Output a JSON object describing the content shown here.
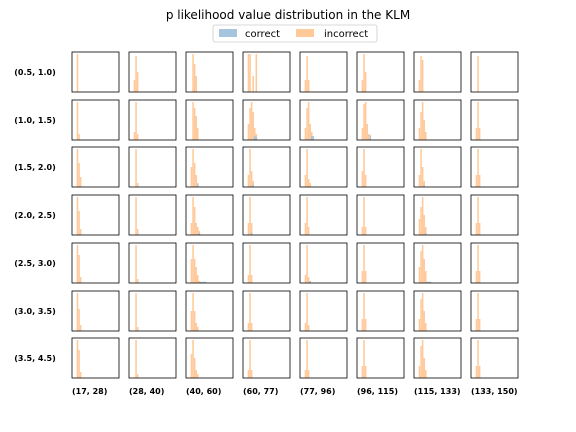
{
  "chart_data": {
    "type": "histogram-grid",
    "title": "p likelihood value distribution in the KLM",
    "legend": {
      "placement": "top-center",
      "entries": [
        {
          "label": "correct",
          "color": "#a6c4de"
        },
        {
          "label": "incorrect",
          "color": "#ffc999"
        }
      ]
    },
    "row_labels": [
      "(0.5, 1.0)",
      "(1.0, 1.5)",
      "(1.5, 2.0)",
      "(2.0, 2.5)",
      "(2.5, 3.0)",
      "(3.0, 3.5)",
      "(3.5, 4.5)"
    ],
    "col_labels": [
      "(17, 28)",
      "(28, 40)",
      "(40, 60)",
      "(60, 77)",
      "(77, 96)",
      "(96, 115)",
      "(115, 133)",
      "(133, 150)"
    ],
    "bins": 30,
    "value_range": [
      0,
      1
    ],
    "panels": [
      [
        {
          "incorrect": [
            [
              3,
              0.95
            ]
          ],
          "correct": []
        },
        {
          "incorrect": [
            [
              3,
              0.3
            ],
            [
              4,
              0.9
            ],
            [
              5,
              0.5
            ]
          ],
          "correct": []
        },
        {
          "incorrect": [
            [
              4,
              0.95
            ],
            [
              5,
              0.7
            ],
            [
              6,
              0.4
            ]
          ],
          "correct": []
        },
        {
          "incorrect": [
            [
              3,
              0.95
            ],
            [
              4,
              0.95
            ],
            [
              6,
              0.4
            ],
            [
              8,
              0.95
            ]
          ],
          "correct": []
        },
        {
          "incorrect": [
            [
              3,
              0.3
            ],
            [
              4,
              0.9
            ],
            [
              5,
              0.3
            ]
          ],
          "correct": []
        },
        {
          "incorrect": [
            [
              3,
              0.3
            ],
            [
              4,
              0.95
            ],
            [
              5,
              0.5
            ]
          ],
          "correct": []
        },
        {
          "incorrect": [
            [
              3,
              0.3
            ],
            [
              4,
              0.9
            ],
            [
              5,
              0.8
            ]
          ],
          "correct": []
        },
        {
          "incorrect": [
            [
              4,
              0.9
            ]
          ],
          "correct": []
        }
      ],
      [
        {
          "incorrect": [
            [
              3,
              0.95
            ],
            [
              4,
              0.15
            ]
          ],
          "correct": []
        },
        {
          "incorrect": [
            [
              3,
              0.2
            ],
            [
              4,
              0.95
            ],
            [
              5,
              0.15
            ]
          ],
          "correct": []
        },
        {
          "incorrect": [
            [
              4,
              0.95
            ],
            [
              5,
              0.8
            ],
            [
              6,
              0.6
            ],
            [
              7,
              0.3
            ]
          ],
          "correct": []
        },
        {
          "incorrect": [
            [
              3,
              0.4
            ],
            [
              4,
              0.8
            ],
            [
              5,
              0.95
            ],
            [
              6,
              0.7
            ],
            [
              7,
              0.3
            ],
            [
              8,
              0.15
            ]
          ],
          "correct": [
            [
              7,
              0.1
            ],
            [
              8,
              0.08
            ]
          ]
        },
        {
          "incorrect": [
            [
              3,
              0.3
            ],
            [
              4,
              0.8
            ],
            [
              5,
              0.95
            ],
            [
              6,
              0.4
            ],
            [
              7,
              0.2
            ]
          ],
          "correct": [
            [
              7,
              0.1
            ],
            [
              8,
              0.1
            ]
          ]
        },
        {
          "incorrect": [
            [
              3,
              0.3
            ],
            [
              4,
              0.9
            ],
            [
              5,
              0.95
            ],
            [
              6,
              0.4
            ],
            [
              7,
              0.15
            ]
          ],
          "correct": [
            [
              8,
              0.12
            ]
          ]
        },
        {
          "incorrect": [
            [
              3,
              0.3
            ],
            [
              4,
              0.7
            ],
            [
              5,
              0.95
            ],
            [
              6,
              0.5
            ],
            [
              7,
              0.2
            ]
          ],
          "correct": []
        },
        {
          "incorrect": [
            [
              3,
              0.3
            ],
            [
              4,
              0.95
            ],
            [
              5,
              0.3
            ]
          ],
          "correct": []
        }
      ],
      [
        {
          "incorrect": [
            [
              3,
              0.95
            ],
            [
              4,
              0.6
            ],
            [
              5,
              0.25
            ]
          ],
          "correct": []
        },
        {
          "incorrect": [
            [
              4,
              0.95
            ],
            [
              5,
              0.1
            ]
          ],
          "correct": []
        },
        {
          "incorrect": [
            [
              3,
              0.5
            ],
            [
              4,
              0.95
            ],
            [
              5,
              0.6
            ],
            [
              6,
              0.3
            ],
            [
              7,
              0.1
            ]
          ],
          "correct": [
            [
              7,
              0.08
            ]
          ]
        },
        {
          "incorrect": [
            [
              3,
              0.3
            ],
            [
              4,
              0.95
            ],
            [
              5,
              0.4
            ],
            [
              6,
              0.15
            ]
          ],
          "correct": [
            [
              6,
              0.06
            ]
          ]
        },
        {
          "incorrect": [
            [
              3,
              0.3
            ],
            [
              4,
              0.95
            ],
            [
              5,
              0.2
            ],
            [
              6,
              0.1
            ]
          ],
          "correct": []
        },
        {
          "incorrect": [
            [
              3,
              0.4
            ],
            [
              4,
              0.95
            ],
            [
              5,
              0.3
            ]
          ],
          "correct": []
        },
        {
          "incorrect": [
            [
              3,
              0.3
            ],
            [
              4,
              0.95
            ],
            [
              5,
              0.5
            ],
            [
              6,
              0.15
            ]
          ],
          "correct": [
            [
              6,
              0.04
            ]
          ]
        },
        {
          "incorrect": [
            [
              3,
              0.3
            ],
            [
              4,
              0.95
            ],
            [
              5,
              0.3
            ]
          ],
          "correct": []
        }
      ],
      [
        {
          "incorrect": [
            [
              3,
              0.95
            ],
            [
              4,
              0.6
            ],
            [
              5,
              0.15
            ]
          ],
          "correct": []
        },
        {
          "incorrect": [
            [
              4,
              0.95
            ],
            [
              5,
              0.15
            ]
          ],
          "correct": []
        },
        {
          "incorrect": [
            [
              3,
              0.3
            ],
            [
              4,
              0.95
            ],
            [
              5,
              0.7
            ],
            [
              6,
              0.3
            ],
            [
              7,
              0.2
            ],
            [
              8,
              0.1
            ]
          ],
          "correct": [
            [
              8,
              0.05
            ]
          ]
        },
        {
          "incorrect": [
            [
              3,
              0.3
            ],
            [
              4,
              0.95
            ],
            [
              5,
              0.3
            ]
          ],
          "correct": [
            [
              5,
              0.06
            ]
          ]
        },
        {
          "incorrect": [
            [
              3,
              0.3
            ],
            [
              4,
              0.95
            ],
            [
              5,
              0.2
            ]
          ],
          "correct": []
        },
        {
          "incorrect": [
            [
              3,
              0.2
            ],
            [
              4,
              0.95
            ],
            [
              5,
              0.2
            ]
          ],
          "correct": []
        },
        {
          "incorrect": [
            [
              3,
              0.4
            ],
            [
              4,
              0.7
            ],
            [
              5,
              0.95
            ],
            [
              6,
              0.5
            ],
            [
              7,
              0.2
            ]
          ],
          "correct": [
            [
              7,
              0.04
            ]
          ]
        },
        {
          "incorrect": [
            [
              3,
              0.3
            ],
            [
              4,
              0.95
            ],
            [
              5,
              0.3
            ]
          ],
          "correct": []
        }
      ],
      [
        {
          "incorrect": [
            [
              3,
              0.95
            ],
            [
              4,
              0.7
            ],
            [
              5,
              0.15
            ]
          ],
          "correct": []
        },
        {
          "incorrect": [
            [
              4,
              0.95
            ],
            [
              5,
              0.1
            ]
          ],
          "correct": []
        },
        {
          "incorrect": [
            [
              3,
              0.6
            ],
            [
              4,
              0.95
            ],
            [
              5,
              0.6
            ],
            [
              6,
              0.4
            ],
            [
              7,
              0.2
            ],
            [
              8,
              0.05
            ]
          ],
          "correct": [
            [
              9,
              0.03
            ],
            [
              10,
              0.03
            ],
            [
              11,
              0.03
            ],
            [
              12,
              0.03
            ]
          ]
        },
        {
          "incorrect": [
            [
              3,
              0.2
            ],
            [
              4,
              0.95
            ],
            [
              5,
              0.2
            ]
          ],
          "correct": []
        },
        {
          "incorrect": [
            [
              3,
              0.2
            ],
            [
              4,
              0.95
            ],
            [
              5,
              0.15
            ]
          ],
          "correct": [
            [
              6,
              0.05
            ]
          ]
        },
        {
          "incorrect": [
            [
              3,
              0.3
            ],
            [
              4,
              0.95
            ],
            [
              5,
              0.3
            ]
          ],
          "correct": []
        },
        {
          "incorrect": [
            [
              3,
              0.4
            ],
            [
              4,
              0.8
            ],
            [
              5,
              0.95
            ],
            [
              6,
              0.6
            ],
            [
              7,
              0.3
            ]
          ],
          "correct": [
            [
              8,
              0.03
            ],
            [
              9,
              0.03
            ],
            [
              10,
              0.03
            ]
          ]
        },
        {
          "incorrect": [
            [
              3,
              0.3
            ],
            [
              4,
              0.95
            ],
            [
              5,
              0.3
            ]
          ],
          "correct": []
        }
      ],
      [
        {
          "incorrect": [
            [
              3,
              0.95
            ],
            [
              4,
              0.55
            ],
            [
              5,
              0.15
            ]
          ],
          "correct": []
        },
        {
          "incorrect": [
            [
              4,
              0.95
            ],
            [
              5,
              0.1
            ]
          ],
          "correct": []
        },
        {
          "incorrect": [
            [
              3,
              0.5
            ],
            [
              4,
              0.95
            ],
            [
              5,
              0.5
            ],
            [
              6,
              0.2
            ],
            [
              7,
              0.1
            ]
          ],
          "correct": []
        },
        {
          "incorrect": [
            [
              3,
              0.2
            ],
            [
              4,
              0.95
            ],
            [
              5,
              0.2
            ]
          ],
          "correct": []
        },
        {
          "incorrect": [
            [
              3,
              0.2
            ],
            [
              4,
              0.95
            ],
            [
              5,
              0.15
            ]
          ],
          "correct": []
        },
        {
          "incorrect": [
            [
              3,
              0.3
            ],
            [
              4,
              0.95
            ],
            [
              5,
              0.3
            ]
          ],
          "correct": []
        },
        {
          "incorrect": [
            [
              3,
              0.3
            ],
            [
              4,
              0.8
            ],
            [
              5,
              0.95
            ],
            [
              6,
              0.5
            ],
            [
              7,
              0.2
            ]
          ],
          "correct": []
        },
        {
          "incorrect": [
            [
              3,
              0.3
            ],
            [
              4,
              0.95
            ],
            [
              5,
              0.3
            ]
          ],
          "correct": []
        }
      ],
      [
        {
          "incorrect": [
            [
              3,
              0.95
            ],
            [
              4,
              0.7
            ],
            [
              5,
              0.15
            ]
          ],
          "correct": []
        },
        {
          "incorrect": [
            [
              4,
              0.95
            ],
            [
              5,
              0.1
            ]
          ],
          "correct": []
        },
        {
          "incorrect": [
            [
              3,
              0.6
            ],
            [
              4,
              0.95
            ],
            [
              5,
              0.5
            ],
            [
              6,
              0.2
            ],
            [
              7,
              0.1
            ]
          ],
          "correct": []
        },
        {
          "incorrect": [
            [
              3,
              0.2
            ],
            [
              4,
              0.95
            ],
            [
              5,
              0.2
            ]
          ],
          "correct": []
        },
        {
          "incorrect": [
            [
              3,
              0.2
            ],
            [
              4,
              0.95
            ],
            [
              5,
              0.2
            ]
          ],
          "correct": []
        },
        {
          "incorrect": [
            [
              3,
              0.3
            ],
            [
              4,
              0.95
            ],
            [
              5,
              0.3
            ]
          ],
          "correct": []
        },
        {
          "incorrect": [
            [
              3,
              0.3
            ],
            [
              4,
              0.8
            ],
            [
              5,
              0.95
            ],
            [
              6,
              0.5
            ],
            [
              7,
              0.2
            ]
          ],
          "correct": []
        },
        {
          "incorrect": [
            [
              3,
              0.3
            ],
            [
              4,
              0.95
            ],
            [
              5,
              0.3
            ]
          ],
          "correct": []
        }
      ]
    ]
  }
}
